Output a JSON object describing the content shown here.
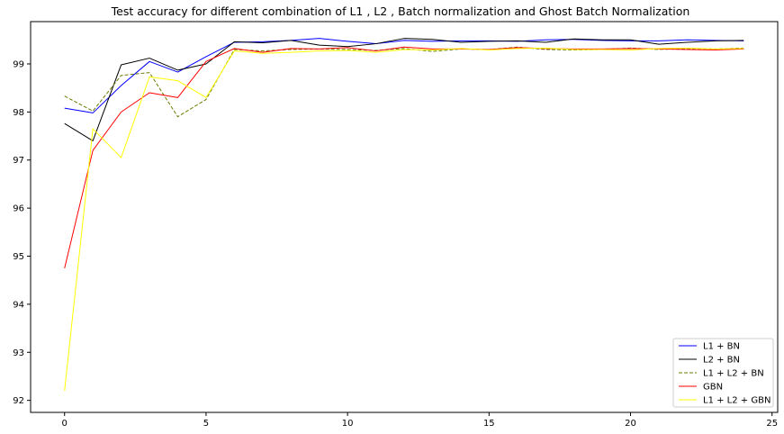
{
  "chart_data": {
    "type": "line",
    "title": "Test accuracy for different combination of L1 , L2 , Batch normalization and Ghost Batch Normalization",
    "xlabel": "",
    "ylabel": "",
    "xlim": [
      -1.2,
      25.2
    ],
    "ylim": [
      91.75,
      99.88
    ],
    "x_ticks": [
      0,
      5,
      10,
      15,
      20,
      25
    ],
    "y_ticks": [
      92,
      93,
      94,
      95,
      96,
      97,
      98,
      99
    ],
    "grid": false,
    "legend_position": "lower right",
    "x": [
      0,
      1,
      2,
      3,
      4,
      5,
      6,
      7,
      8,
      9,
      10,
      11,
      12,
      13,
      14,
      15,
      16,
      17,
      18,
      19,
      20,
      21,
      22,
      23,
      24
    ],
    "series": [
      {
        "name": "L1 + BN",
        "color": "#0000ff",
        "dash": "solid",
        "values": [
          98.08,
          97.98,
          98.55,
          99.05,
          98.83,
          99.15,
          99.45,
          99.46,
          99.49,
          99.53,
          99.47,
          99.42,
          99.49,
          99.47,
          99.48,
          99.48,
          99.47,
          99.5,
          99.51,
          99.49,
          99.48,
          99.48,
          99.5,
          99.49,
          99.48
        ]
      },
      {
        "name": "L2 + BN",
        "color": "#000000",
        "dash": "solid",
        "values": [
          97.76,
          97.4,
          98.98,
          99.12,
          98.87,
          99.0,
          99.46,
          99.44,
          99.49,
          99.39,
          99.36,
          99.42,
          99.53,
          99.51,
          99.45,
          99.47,
          99.48,
          99.45,
          99.52,
          99.5,
          99.5,
          99.41,
          99.45,
          99.48,
          99.49
        ]
      },
      {
        "name": "L1 + L2 + BN",
        "color": "#6b7a00",
        "dash": "dashed",
        "values": [
          98.33,
          98.02,
          98.76,
          98.82,
          97.9,
          98.26,
          99.3,
          99.27,
          99.3,
          99.31,
          99.3,
          99.28,
          99.32,
          99.26,
          99.31,
          99.3,
          99.35,
          99.3,
          99.29,
          99.3,
          99.33,
          99.3,
          99.32,
          99.31,
          99.33
        ]
      },
      {
        "name": "GBN",
        "color": "#ff0000",
        "dash": "solid",
        "values": [
          94.75,
          97.2,
          98.0,
          98.4,
          98.3,
          99.05,
          99.32,
          99.24,
          99.32,
          99.31,
          99.34,
          99.27,
          99.35,
          99.31,
          99.31,
          99.3,
          99.34,
          99.32,
          99.31,
          99.31,
          99.32,
          99.31,
          99.3,
          99.29,
          99.31
        ]
      },
      {
        "name": "L1 + L2 + GBN",
        "color": "#ffff00",
        "dash": "solid",
        "values": [
          92.2,
          97.65,
          97.05,
          98.73,
          98.65,
          98.3,
          99.27,
          99.22,
          99.24,
          99.27,
          99.28,
          99.24,
          99.3,
          99.29,
          99.32,
          99.29,
          99.32,
          99.33,
          99.3,
          99.3,
          99.29,
          99.32,
          99.33,
          99.31,
          99.32
        ]
      }
    ]
  }
}
